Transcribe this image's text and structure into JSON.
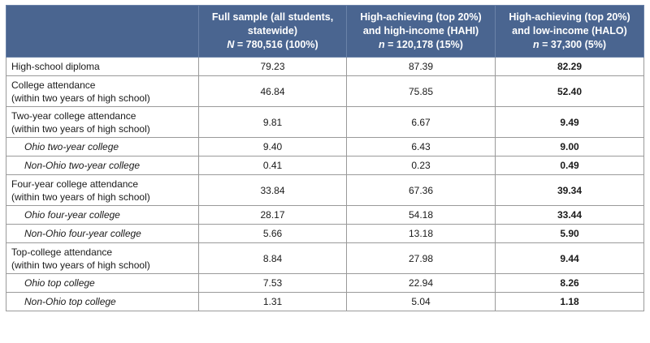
{
  "headers": [
    {
      "line1": "",
      "line2": "",
      "n_label": "",
      "n_value": ""
    },
    {
      "line1": "Full sample (all students,",
      "line2": "statewide)",
      "n_label": "N",
      "n_value": " = 780,516 (100%)"
    },
    {
      "line1": "High-achieving (top 20%)",
      "line2": "and high-income (HAHI)",
      "n_label": "n",
      "n_value": " = 120,178 (15%)"
    },
    {
      "line1": "High-achieving (top 20%)",
      "line2": "and low-income (HALO)",
      "n_label": "n",
      "n_value": " = 37,300 (5%)"
    }
  ],
  "rows": [
    {
      "label1": "High-school diploma",
      "label2": "",
      "sub": false,
      "full": "79.23",
      "hahi": "87.39",
      "halo": "82.29"
    },
    {
      "label1": "College attendance",
      "label2": "(within two years of high school)",
      "sub": false,
      "full": "46.84",
      "hahi": "75.85",
      "halo": "52.40"
    },
    {
      "label1": "Two-year college attendance",
      "label2": "(within two years of high school)",
      "sub": false,
      "full": "9.81",
      "hahi": "6.67",
      "halo": "9.49"
    },
    {
      "label1": "Ohio two-year college",
      "label2": "",
      "sub": true,
      "full": "9.40",
      "hahi": "6.43",
      "halo": "9.00"
    },
    {
      "label1": "Non-Ohio two-year college",
      "label2": "",
      "sub": true,
      "full": "0.41",
      "hahi": "0.23",
      "halo": "0.49"
    },
    {
      "label1": "Four-year college attendance",
      "label2": "(within two years of high school)",
      "sub": false,
      "full": "33.84",
      "hahi": "67.36",
      "halo": "39.34"
    },
    {
      "label1": "Ohio four-year college",
      "label2": "",
      "sub": true,
      "full": "28.17",
      "hahi": "54.18",
      "halo": "33.44"
    },
    {
      "label1": "Non-Ohio four-year college",
      "label2": "",
      "sub": true,
      "full": "5.66",
      "hahi": "13.18",
      "halo": "5.90"
    },
    {
      "label1": "Top-college attendance",
      "label2": "(within two years of high school)",
      "sub": false,
      "full": "8.84",
      "hahi": "27.98",
      "halo": "9.44"
    },
    {
      "label1": "Ohio top college",
      "label2": "",
      "sub": true,
      "full": "7.53",
      "hahi": "22.94",
      "halo": "8.26"
    },
    {
      "label1": "Non-Ohio top college",
      "label2": "",
      "sub": true,
      "full": "1.31",
      "hahi": "5.04",
      "halo": "1.18"
    }
  ]
}
